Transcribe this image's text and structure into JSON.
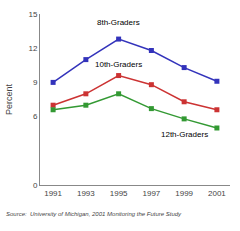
{
  "chart_data": {
    "type": "line",
    "x": [
      1991,
      1993,
      1995,
      1997,
      1999,
      2001
    ],
    "xlim": [
      1990.2,
      2001.8
    ],
    "xticks": [
      1991,
      1993,
      1995,
      1997,
      1999,
      2001
    ],
    "ylim": [
      0,
      15
    ],
    "yticks": [
      0,
      6,
      9,
      12,
      15
    ],
    "ylabel": "Percent",
    "grid": false,
    "marker": "square",
    "series": [
      {
        "name": "8th-Graders",
        "color": "#3333bb",
        "values": [
          9.0,
          11.0,
          12.8,
          11.8,
          10.3,
          9.1
        ]
      },
      {
        "name": "10th-Graders",
        "color": "#cc3333",
        "values": [
          7.0,
          8.0,
          9.6,
          8.8,
          7.3,
          6.6
        ]
      },
      {
        "name": "12th-Graders",
        "color": "#339933",
        "values": [
          6.6,
          7.0,
          8.0,
          6.7,
          5.8,
          5.0
        ]
      }
    ],
    "annotations": [
      "Source:  University of Michigan, 2001 Monitoring the Future Study"
    ]
  }
}
